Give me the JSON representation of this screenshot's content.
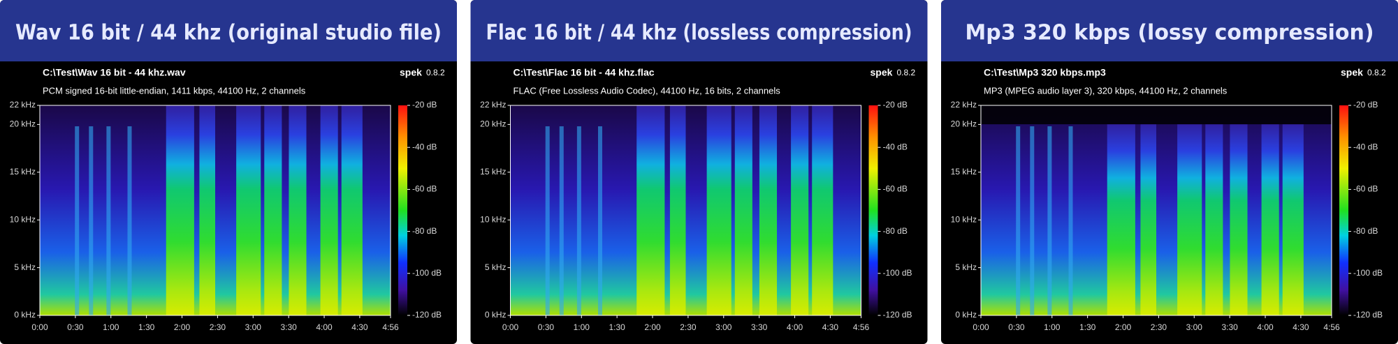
{
  "panels": [
    {
      "title": "Wav 16 bit / 44 khz (original studio file)",
      "file": "C:\\Test\\Wav 16 bit - 44 khz.wav",
      "app": "spek",
      "version": "0.8.2",
      "description": "PCM signed 16-bit little-endian, 1411 kbps, 44100 Hz, 2 channels",
      "freq_ticks": [
        {
          "value": 0,
          "label": "0 kHz"
        },
        {
          "value": 5,
          "label": "5 kHz"
        },
        {
          "value": 10,
          "label": "10 kHz"
        },
        {
          "value": 15,
          "label": "15 kHz"
        },
        {
          "value": 20,
          "label": "20 kHz"
        },
        {
          "value": 22,
          "label": "22 kHz"
        }
      ],
      "time_ticks": [
        {
          "value": 0,
          "label": "0:00"
        },
        {
          "value": 30,
          "label": "0:30"
        },
        {
          "value": 60,
          "label": "1:00"
        },
        {
          "value": 90,
          "label": "1:30"
        },
        {
          "value": 120,
          "label": "2:00"
        },
        {
          "value": 150,
          "label": "2:30"
        },
        {
          "value": 180,
          "label": "3:00"
        },
        {
          "value": 210,
          "label": "3:30"
        },
        {
          "value": 240,
          "label": "4:00"
        },
        {
          "value": 270,
          "label": "4:30"
        },
        {
          "value": 296,
          "label": "4:56"
        }
      ],
      "db_ticks": [
        {
          "value": -20,
          "label": "-20 dB"
        },
        {
          "value": -40,
          "label": "-40 dB"
        },
        {
          "value": -60,
          "label": "-60 dB"
        },
        {
          "value": -80,
          "label": "-80 dB"
        },
        {
          "value": -100,
          "label": "-100 dB"
        },
        {
          "value": -120,
          "label": "-120 dB"
        }
      ]
    },
    {
      "title": "Flac 16 bit / 44 khz (lossless compression)",
      "file": "C:\\Test\\Flac 16 bit - 44 khz.flac",
      "app": "spek",
      "version": "0.8.2",
      "description": "FLAC (Free Lossless Audio Codec), 44100 Hz, 16 bits, 2 channels",
      "freq_ticks": [
        {
          "value": 0,
          "label": "0 kHz"
        },
        {
          "value": 5,
          "label": "5 kHz"
        },
        {
          "value": 10,
          "label": "10 kHz"
        },
        {
          "value": 15,
          "label": "15 kHz"
        },
        {
          "value": 20,
          "label": "20 kHz"
        },
        {
          "value": 22,
          "label": "22 kHz"
        }
      ],
      "time_ticks": [
        {
          "value": 0,
          "label": "0:00"
        },
        {
          "value": 30,
          "label": "0:30"
        },
        {
          "value": 60,
          "label": "1:00"
        },
        {
          "value": 90,
          "label": "1:30"
        },
        {
          "value": 120,
          "label": "2:00"
        },
        {
          "value": 150,
          "label": "2:30"
        },
        {
          "value": 180,
          "label": "3:00"
        },
        {
          "value": 210,
          "label": "3:30"
        },
        {
          "value": 240,
          "label": "4:00"
        },
        {
          "value": 270,
          "label": "4:30"
        },
        {
          "value": 296,
          "label": "4:56"
        }
      ],
      "db_ticks": [
        {
          "value": -20,
          "label": "-20 dB"
        },
        {
          "value": -40,
          "label": "-40 dB"
        },
        {
          "value": -60,
          "label": "-60 dB"
        },
        {
          "value": -80,
          "label": "-80 dB"
        },
        {
          "value": -100,
          "label": "-100 dB"
        },
        {
          "value": -120,
          "label": "-120 dB"
        }
      ]
    },
    {
      "title": "Mp3 320 kbps (lossy compression)",
      "file": "C:\\Test\\Mp3 320 kbps.mp3",
      "app": "spek",
      "version": "0.8.2",
      "description": "MP3 (MPEG audio layer 3), 320 kbps, 44100 Hz, 2 channels",
      "freq_ticks": [
        {
          "value": 0,
          "label": "0 kHz"
        },
        {
          "value": 5,
          "label": "5 kHz"
        },
        {
          "value": 10,
          "label": "10 kHz"
        },
        {
          "value": 15,
          "label": "15 kHz"
        },
        {
          "value": 20,
          "label": "20 kHz"
        },
        {
          "value": 22,
          "label": "22 kHz"
        }
      ],
      "time_ticks": [
        {
          "value": 0,
          "label": "0:00"
        },
        {
          "value": 30,
          "label": "0:30"
        },
        {
          "value": 60,
          "label": "1:00"
        },
        {
          "value": 90,
          "label": "1:30"
        },
        {
          "value": 120,
          "label": "2:00"
        },
        {
          "value": 150,
          "label": "2:30"
        },
        {
          "value": 180,
          "label": "3:00"
        },
        {
          "value": 210,
          "label": "3:30"
        },
        {
          "value": 240,
          "label": "4:00"
        },
        {
          "value": 270,
          "label": "4:30"
        },
        {
          "value": 296,
          "label": "4:56"
        }
      ],
      "db_ticks": [
        {
          "value": -20,
          "label": "-20 dB"
        },
        {
          "value": -40,
          "label": "-40 dB"
        },
        {
          "value": -60,
          "label": "-60 dB"
        },
        {
          "value": -80,
          "label": "-80 dB"
        },
        {
          "value": -100,
          "label": "-100 dB"
        },
        {
          "value": -120,
          "label": "-120 dB"
        }
      ]
    }
  ]
}
